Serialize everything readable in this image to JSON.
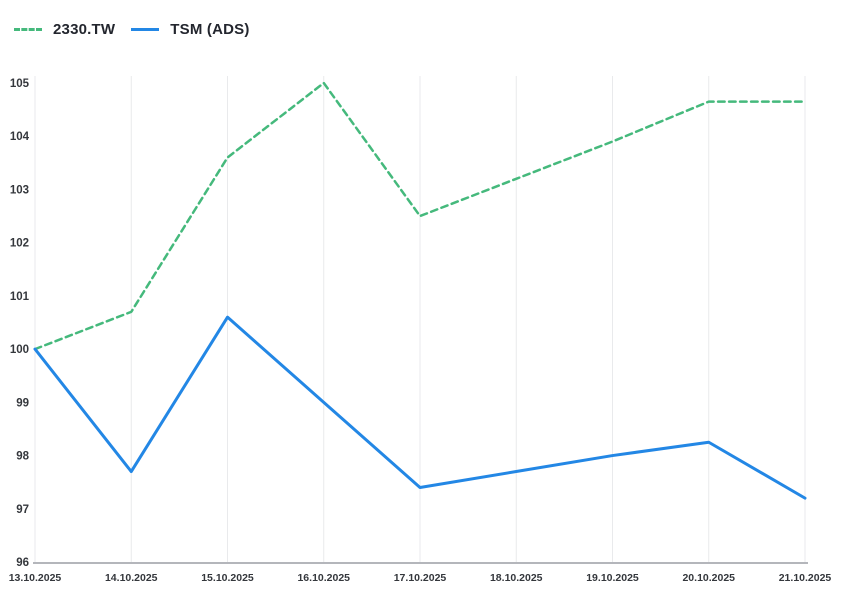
{
  "legend": {
    "items": [
      {
        "label": "2330.TW",
        "color": "#45b97c",
        "line_style": "dashed"
      },
      {
        "label": "TSM (ADS)",
        "color": "#2387e5",
        "line_style": "solid"
      }
    ]
  },
  "chart_data": {
    "type": "line",
    "x": [
      "13.10.2025",
      "14.10.2025",
      "15.10.2025",
      "16.10.2025",
      "17.10.2025",
      "18.10.2025",
      "19.10.2025",
      "20.10.2025",
      "21.10.2025"
    ],
    "series": [
      {
        "name": "2330.TW",
        "values": [
          100,
          100.7,
          103.6,
          105,
          102.5,
          103.2,
          103.9,
          104.65,
          104.65
        ],
        "color": "#45b97c",
        "dashed": true
      },
      {
        "name": "TSM (ADS)",
        "values": [
          100,
          97.7,
          100.6,
          99,
          97.4,
          97.7,
          98,
          98.25,
          97.2
        ],
        "color": "#2387e5",
        "dashed": false
      }
    ],
    "title": "",
    "xlabel": "",
    "ylabel": "",
    "ylim": [
      96,
      105
    ],
    "y_ticks": [
      96,
      97,
      98,
      99,
      100,
      101,
      102,
      103,
      104,
      105
    ],
    "grid": "vertical-only",
    "legend_position": "top-left",
    "colors": {
      "gridline": "#e9eaec",
      "axis_line": "#b4b6bb",
      "tick_text": "#34373c",
      "background": "#ffffff"
    }
  }
}
